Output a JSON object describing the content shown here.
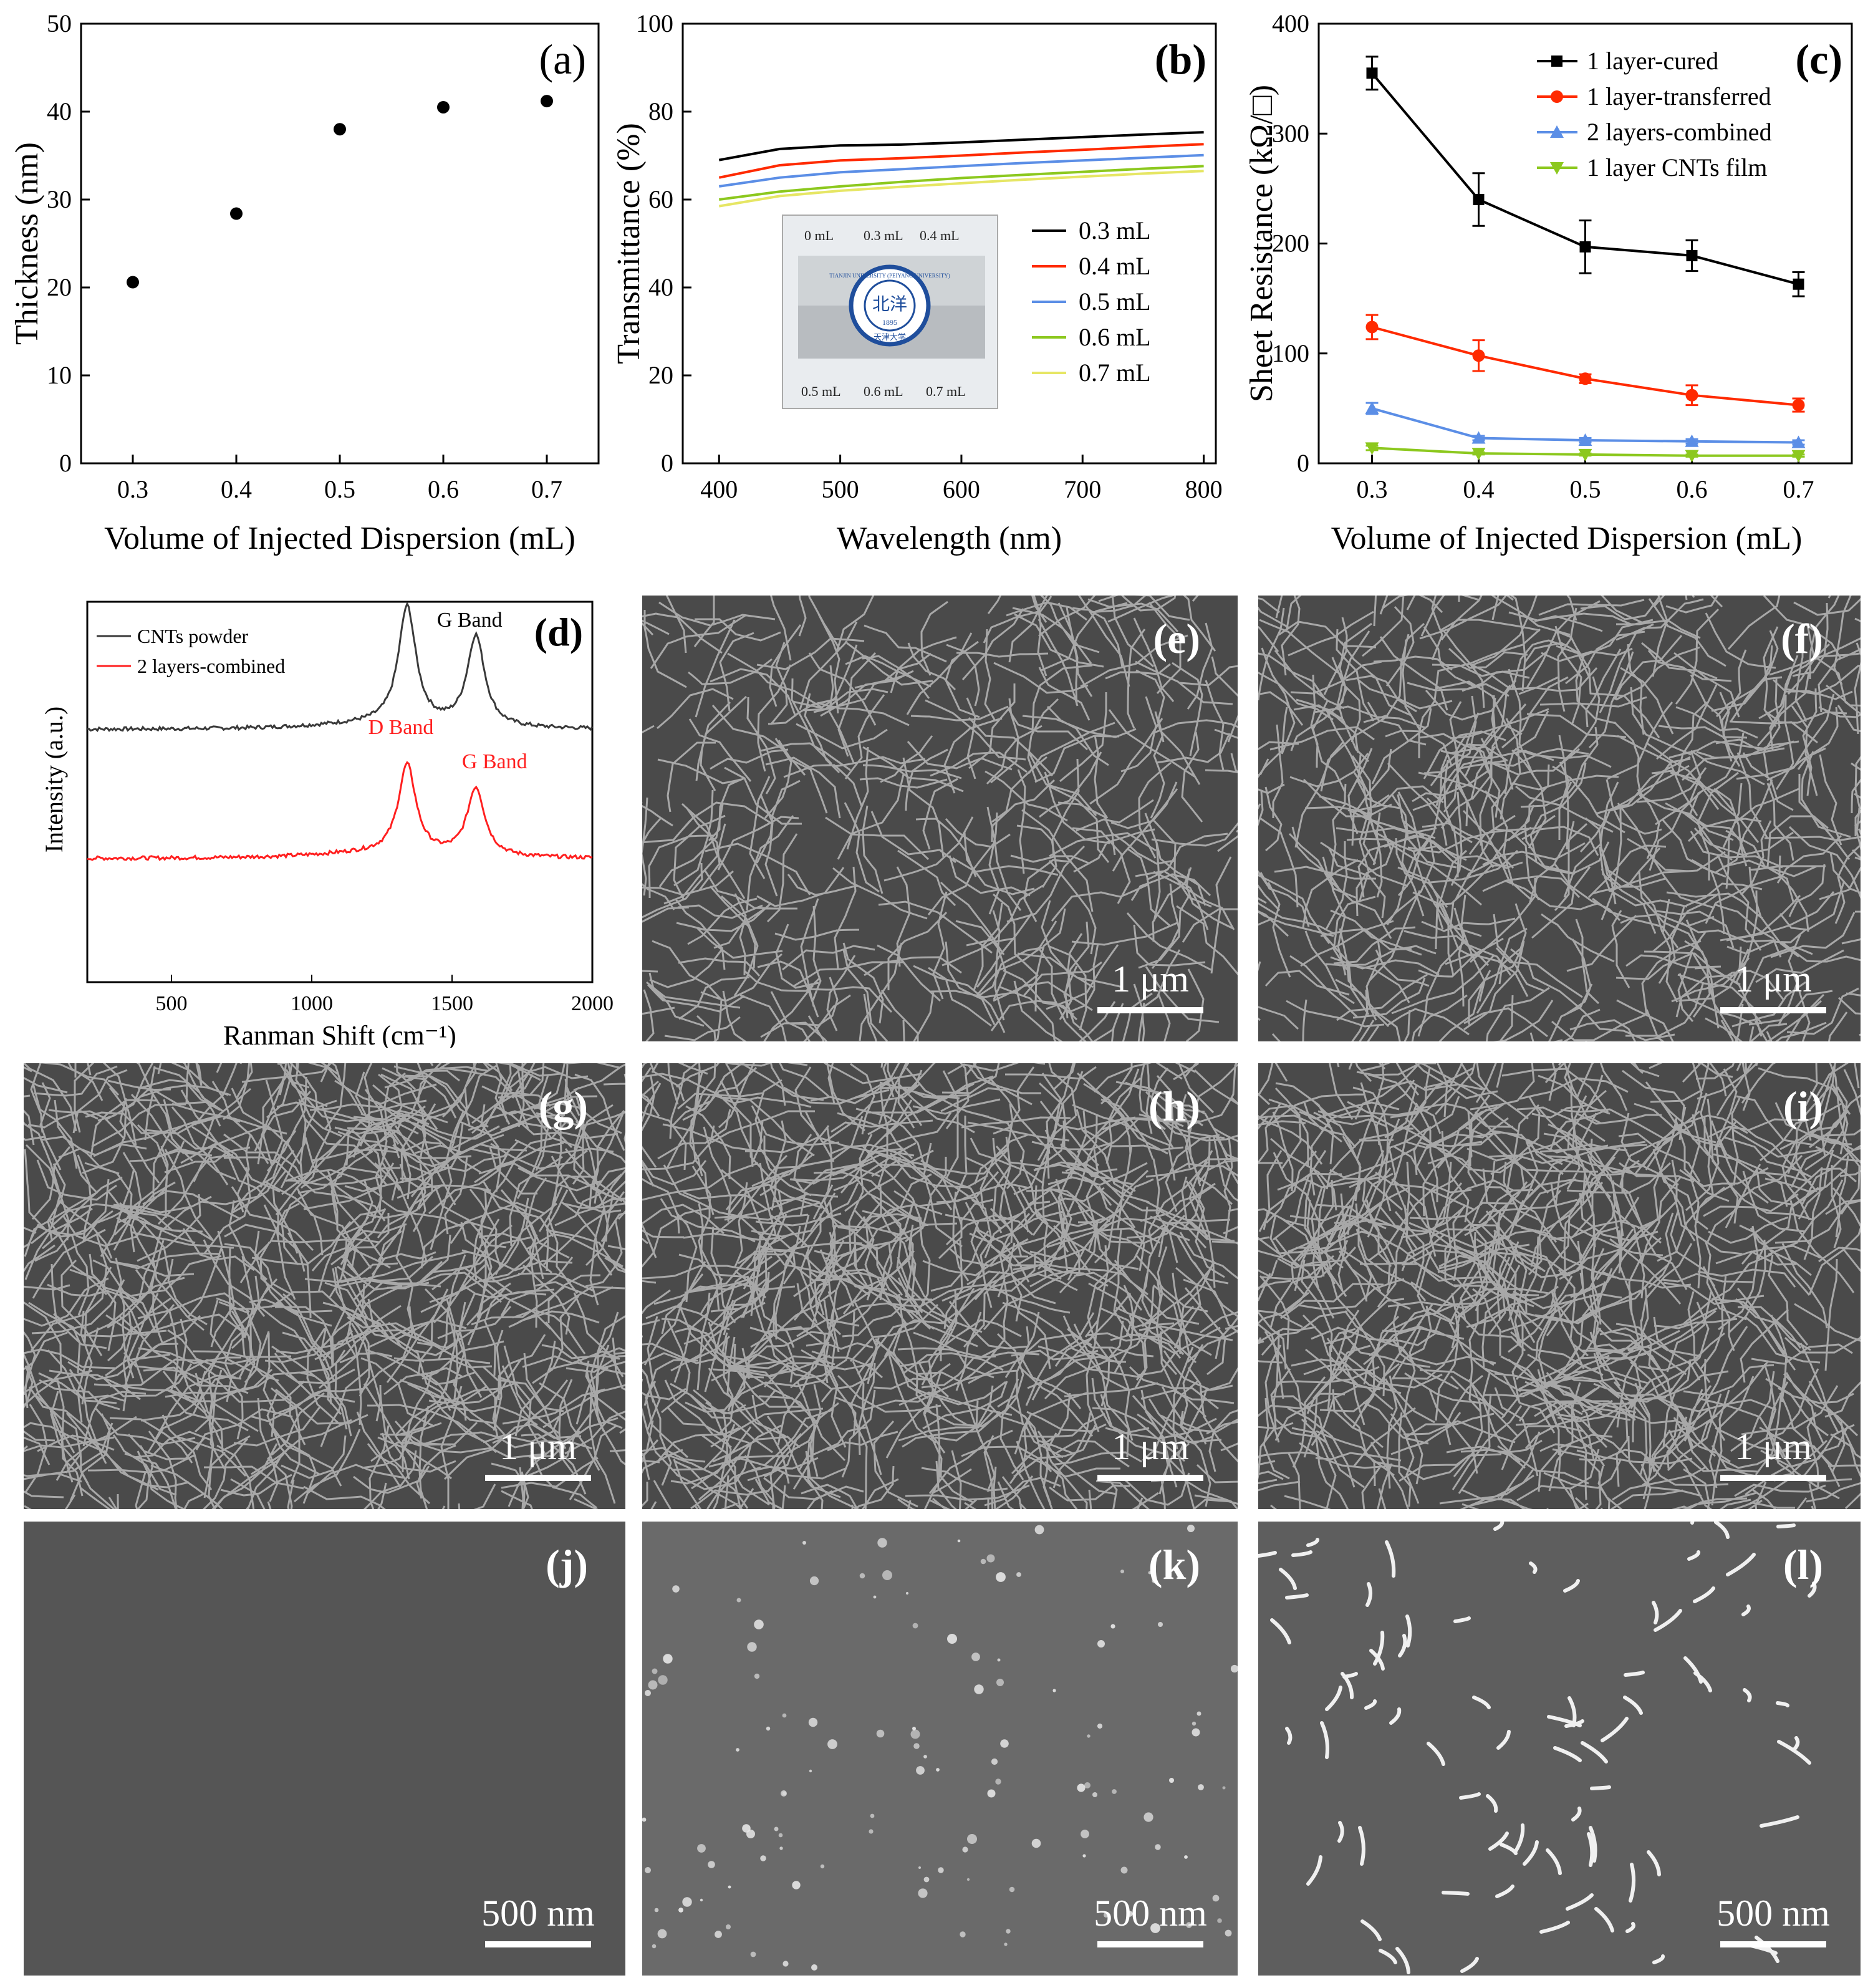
{
  "colors": {
    "black": "#000000",
    "red": "#ff2a00",
    "blue": "#5b8ee6",
    "green": "#8cc81e",
    "yellow": "#e6e664",
    "raman_black": "#3a3a3a",
    "raman_red": "#ff2020"
  },
  "chart_data": [
    {
      "id": "a",
      "panel_label": "(a)",
      "type": "scatter",
      "xlabel": "Volume of Injected Dispersion (mL)",
      "ylabel": "Thickness (nm)",
      "xlim": [
        0.25,
        0.75
      ],
      "ylim": [
        0,
        50
      ],
      "xticks": [
        "0.3",
        "0.4",
        "0.5",
        "0.6",
        "0.7"
      ],
      "yticks": [
        "0",
        "10",
        "20",
        "30",
        "40",
        "50"
      ],
      "series": [
        {
          "x": [
            0.3,
            0.4,
            0.5,
            0.6,
            0.7
          ],
          "y": [
            20.6,
            28.4,
            38.0,
            40.5,
            41.2
          ]
        }
      ]
    },
    {
      "id": "b",
      "panel_label": "(b)",
      "type": "line",
      "xlabel": "Wavelength (nm)",
      "ylabel": "Transmittance (%)",
      "xlim": [
        370,
        810
      ],
      "ylim": [
        0,
        100
      ],
      "xticks": [
        "400",
        "500",
        "600",
        "700",
        "800"
      ],
      "yticks": [
        "0",
        "20",
        "40",
        "60",
        "80",
        "100"
      ],
      "legend_position": "right",
      "x": [
        400,
        450,
        500,
        550,
        600,
        650,
        700,
        750,
        800
      ],
      "series": [
        {
          "name": "0.3 mL",
          "color": "#000000",
          "values": [
            69.0,
            71.5,
            72.3,
            72.5,
            73.0,
            73.6,
            74.2,
            74.8,
            75.3
          ]
        },
        {
          "name": "0.4 mL",
          "color": "#ff2a00",
          "values": [
            65.0,
            67.8,
            68.9,
            69.4,
            70.0,
            70.7,
            71.3,
            72.0,
            72.6
          ]
        },
        {
          "name": "0.5 mL",
          "color": "#5b8ee6",
          "values": [
            63.0,
            65.0,
            66.2,
            66.9,
            67.6,
            68.3,
            68.9,
            69.5,
            70.1
          ]
        },
        {
          "name": "0.6 mL",
          "color": "#8cc81e",
          "values": [
            60.0,
            61.8,
            63.0,
            64.0,
            64.9,
            65.6,
            66.3,
            67.0,
            67.6
          ]
        },
        {
          "name": "0.7 mL",
          "color": "#e6e664",
          "values": [
            58.5,
            60.8,
            62.0,
            62.9,
            63.7,
            64.5,
            65.2,
            65.9,
            66.5
          ]
        }
      ],
      "inset_photo": {
        "top_labels": [
          "0 mL",
          "0.3 mL",
          "0.4 mL"
        ],
        "bottom_labels": [
          "0.5 mL",
          "0.6 mL",
          "0.7 mL"
        ],
        "seal_text": "TIANJIN UNIVERSITY (PEIYANG UNIVERSITY)",
        "seal_center": "北洋",
        "seal_year": "1895",
        "seal_bottom": "天津大学"
      }
    },
    {
      "id": "c",
      "panel_label": "(c)",
      "type": "line",
      "xlabel": "Volume of Injected Dispersion (mL)",
      "ylabel": "Sheet Resistance (kΩ/□)",
      "xlim": [
        0.25,
        0.75
      ],
      "ylim": [
        0,
        400
      ],
      "xticks": [
        "0.3",
        "0.4",
        "0.5",
        "0.6",
        "0.7"
      ],
      "yticks": [
        "0",
        "100",
        "200",
        "300",
        "400"
      ],
      "legend_position": "top-right",
      "x": [
        0.3,
        0.4,
        0.5,
        0.6,
        0.7
      ],
      "series": [
        {
          "name": "1 layer-cured",
          "color": "#000000",
          "marker": "square",
          "values": [
            355,
            240,
            197,
            189,
            163
          ],
          "errors": [
            15,
            24,
            24,
            14,
            11
          ]
        },
        {
          "name": "1 layer-transferred",
          "color": "#ff2a00",
          "marker": "circle",
          "values": [
            124,
            98,
            77,
            62,
            53
          ],
          "errors": [
            11,
            14,
            4,
            9,
            6
          ]
        },
        {
          "name": "2 layers-combined",
          "color": "#5b8ee6",
          "marker": "triangle-up",
          "values": [
            50,
            23,
            21,
            20,
            19
          ],
          "errors": [
            5,
            2,
            2,
            2,
            2
          ]
        },
        {
          "name": "1 layer CNTs film",
          "color": "#8cc81e",
          "marker": "triangle-down",
          "values": [
            14,
            9,
            8,
            7,
            7
          ],
          "errors": [
            2,
            1,
            1,
            1,
            1
          ]
        }
      ]
    },
    {
      "id": "d",
      "panel_label": "(d)",
      "type": "line",
      "xlabel": "Ranman Shift (cm⁻¹)",
      "ylabel": "Intensity (a.u.)",
      "xlim": [
        200,
        2000
      ],
      "xticks": [
        "500",
        "1000",
        "1500",
        "2000"
      ],
      "legend_position": "top-left",
      "series": [
        {
          "name": "CNTs powder",
          "color": "#3a3a3a",
          "offset": 1.0,
          "peaks": [
            [
              1340,
              0.95
            ],
            [
              1585,
              0.73
            ]
          ]
        },
        {
          "name": "2 layers-combined",
          "color": "#ff2020",
          "offset": 0.0,
          "peaks": [
            [
              1340,
              0.72
            ],
            [
              1585,
              0.55
            ]
          ]
        }
      ],
      "annotations": [
        {
          "text": "D Band",
          "series": 0
        },
        {
          "text": "G Band",
          "series": 0
        },
        {
          "text": "D Band",
          "series": 1
        },
        {
          "text": "G Band",
          "series": 1
        }
      ]
    }
  ],
  "sem_panels": [
    {
      "id": "e",
      "label": "(e)",
      "scale": "1 μm",
      "kind": "fibers",
      "density": "sparse"
    },
    {
      "id": "f",
      "label": "(f)",
      "scale": "1 μm",
      "kind": "fibers",
      "density": "medium"
    },
    {
      "id": "g",
      "label": "(g)",
      "scale": "1 μm",
      "kind": "fibers",
      "density": "dense"
    },
    {
      "id": "h",
      "label": "(h)",
      "scale": "1 μm",
      "kind": "fibers",
      "density": "dense"
    },
    {
      "id": "i",
      "label": "(i)",
      "scale": "1 μm",
      "kind": "fibers",
      "density": "dense"
    },
    {
      "id": "j",
      "label": "(j)",
      "scale": "500 nm",
      "kind": "smooth",
      "density": "none"
    },
    {
      "id": "k",
      "label": "(k)",
      "scale": "500 nm",
      "kind": "specks",
      "density": "low"
    },
    {
      "id": "l",
      "label": "(l)",
      "scale": "500 nm",
      "kind": "rods",
      "density": "medium"
    }
  ]
}
